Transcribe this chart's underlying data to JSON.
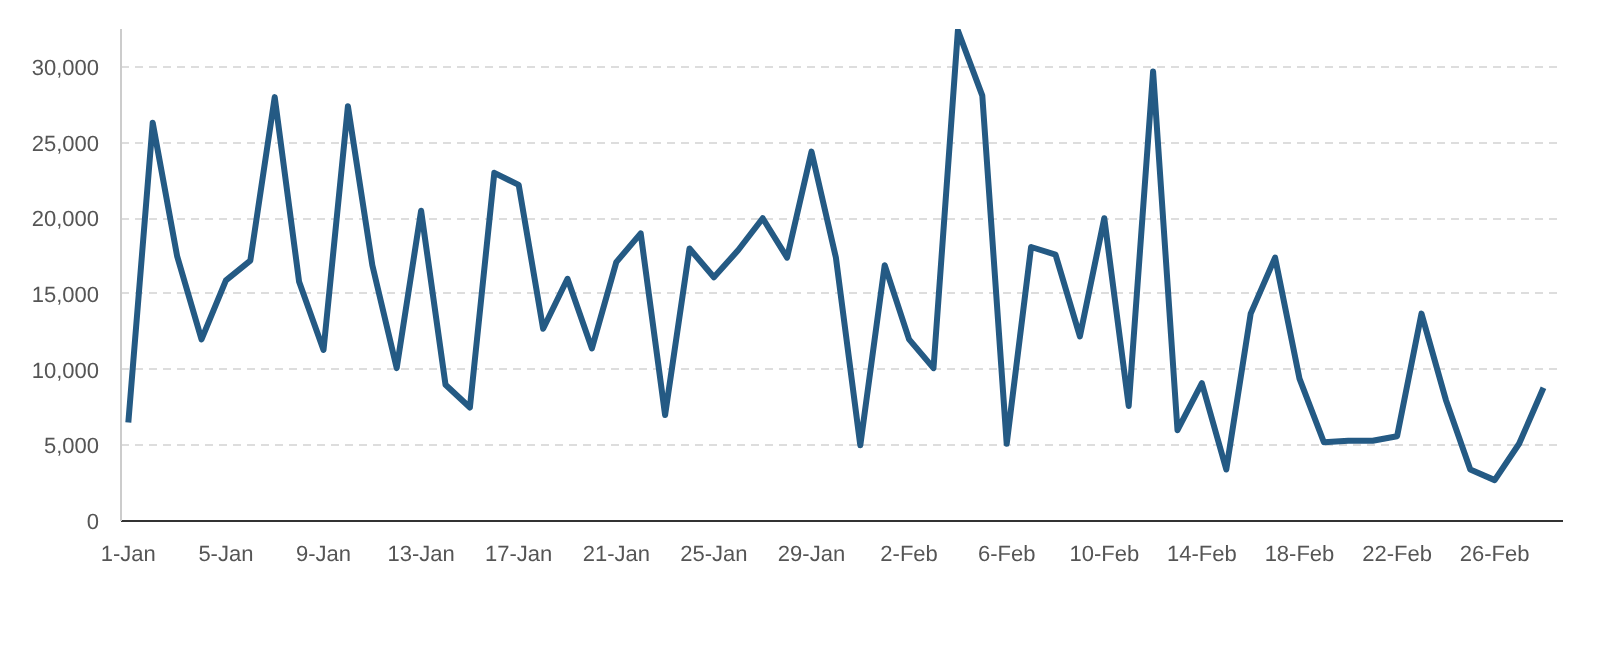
{
  "chart_data": {
    "type": "line",
    "categories": [
      "1-Jan",
      null,
      null,
      null,
      "5-Jan",
      null,
      null,
      null,
      "9-Jan",
      null,
      null,
      null,
      "13-Jan",
      null,
      null,
      null,
      "17-Jan",
      null,
      null,
      null,
      "21-Jan",
      null,
      null,
      null,
      "25-Jan",
      null,
      null,
      null,
      "29-Jan",
      null,
      null,
      null,
      "2-Feb",
      null,
      null,
      null,
      "6-Feb",
      null,
      null,
      null,
      "10-Feb",
      null,
      null,
      null,
      "14-Feb",
      null,
      null,
      null,
      "18-Feb",
      null,
      null,
      null,
      "22-Feb",
      null,
      null,
      null,
      "26-Feb",
      null,
      null
    ],
    "series": [
      {
        "color": "#245a84",
        "values": [
          6500,
          26300,
          17500,
          12000,
          15900,
          17200,
          28000,
          15800,
          11300,
          27400,
          16900,
          10100,
          20500,
          9000,
          7500,
          23000,
          22200,
          12700,
          16000,
          11400,
          17100,
          19000,
          7000,
          18000,
          16100,
          17900,
          20000,
          17400,
          24400,
          17400,
          5000,
          16900,
          12000,
          10100,
          32400,
          28100,
          5100,
          18100,
          17600,
          12200,
          20000,
          7600,
          29700,
          6000,
          9100,
          3400,
          13700,
          17400,
          9400,
          5200,
          5300,
          5300,
          5600,
          13700,
          8000,
          3400,
          2700,
          5100,
          8800
        ]
      }
    ],
    "ylim": [
      0,
      32500
    ],
    "yticks": [
      {
        "value": 0,
        "label": "0"
      },
      {
        "value": 5000,
        "label": "5,000"
      },
      {
        "value": 10000,
        "label": "10,000"
      },
      {
        "value": 15000,
        "label": "15,000"
      },
      {
        "value": 20000,
        "label": "20,000"
      },
      {
        "value": 25000,
        "label": "25,000"
      },
      {
        "value": 30000,
        "label": "30,000"
      }
    ],
    "grid": "y",
    "line_style": "solid"
  }
}
